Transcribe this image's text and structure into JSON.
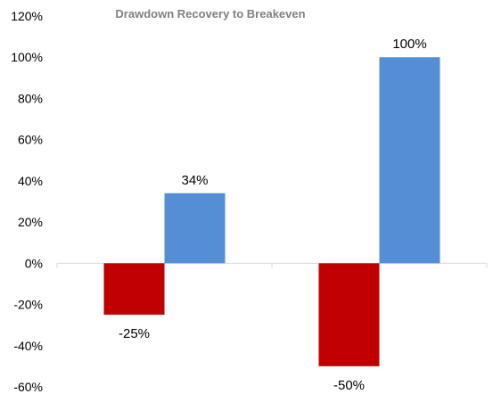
{
  "chart_data": {
    "type": "bar",
    "title": "Drawdown Recovery to Breakeven",
    "xlabel": "",
    "ylabel": "",
    "ylim": [
      -60,
      120
    ],
    "y_ticks": [
      "120%",
      "100%",
      "80%",
      "60%",
      "40%",
      "20%",
      "0%",
      "-20%",
      "-40%",
      "-60%"
    ],
    "y_tick_values": [
      120,
      100,
      80,
      60,
      40,
      20,
      0,
      -20,
      -40,
      -60
    ],
    "categories": [
      "",
      ""
    ],
    "grid": false,
    "legend": "none",
    "series": [
      {
        "values": [
          -25,
          -50
        ],
        "labels": [
          "-25%",
          "-50%"
        ],
        "color": "#C00000"
      },
      {
        "values": [
          34,
          100
        ],
        "labels": [
          "34%",
          "100%"
        ],
        "color": "#558ED5"
      }
    ],
    "axis_color": "#D9D9D9"
  }
}
